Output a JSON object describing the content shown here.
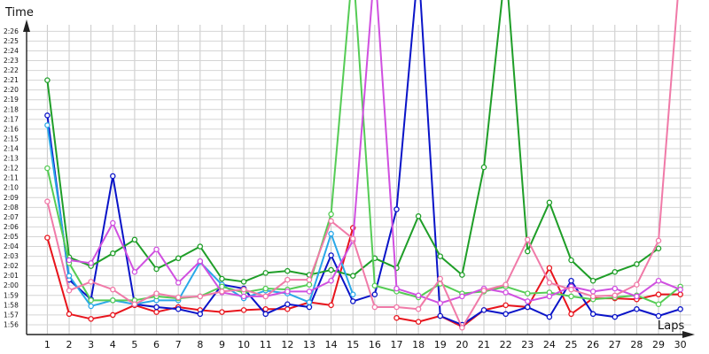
{
  "chart_data": {
    "type": "line",
    "ylabel": "Time",
    "xlabel": "Laps",
    "x": [
      1,
      2,
      3,
      4,
      5,
      6,
      7,
      8,
      9,
      10,
      11,
      12,
      13,
      14,
      15,
      16,
      17,
      18,
      19,
      20,
      21,
      22,
      23,
      24,
      25,
      26,
      27,
      28,
      29,
      30
    ],
    "x_tick_labels": [
      "1",
      "2",
      "3",
      "4",
      "5",
      "6",
      "7",
      "8",
      "9",
      "10",
      "11",
      "12",
      "13",
      "14",
      "15",
      "16",
      "17",
      "18",
      "19",
      "20",
      "21",
      "22",
      "23",
      "24",
      "25",
      "26",
      "27",
      "28",
      "29",
      "30"
    ],
    "y_tick_labels": [
      "1:56",
      "1:57",
      "1:58",
      "1:59",
      "2:00",
      "2:01",
      "2:02",
      "2:03",
      "2:04",
      "2:05",
      "2:06",
      "2:07",
      "2:08",
      "2:09",
      "2:10",
      "2:11",
      "2:12",
      "2:13",
      "2:14",
      "2:15",
      "2:16",
      "2:17",
      "2:18",
      "2:19",
      "2:20",
      "2:21",
      "2:22",
      "2:23",
      "2:24",
      "2:25",
      "2:26"
    ],
    "y_tick_values": [
      116,
      117,
      118,
      119,
      120,
      121,
      122,
      123,
      124,
      125,
      126,
      127,
      128,
      129,
      130,
      131,
      132,
      133,
      134,
      135,
      136,
      137,
      138,
      139,
      140,
      141,
      142,
      143,
      144,
      145,
      146
    ],
    "ylim": [
      115,
      149.2
    ],
    "xlim": [
      0.05,
      30.5
    ],
    "grid": true,
    "series": [
      {
        "color": "#e8141c",
        "values": [
          124.9,
          117.1,
          116.6,
          117.0,
          118.0,
          117.3,
          117.8,
          117.5,
          117.3,
          117.5,
          117.6,
          117.6,
          118.3,
          118.0,
          125.9,
          null,
          116.7,
          116.3,
          116.9,
          115.8,
          117.5,
          118.0,
          117.8,
          121.8,
          117.1,
          118.7,
          118.7,
          118.6,
          119.1,
          119.1
        ]
      },
      {
        "color": "#0a14c8",
        "values": [
          137.4,
          120.6,
          118.6,
          131.2,
          118.1,
          117.8,
          117.6,
          117.1,
          120.1,
          119.7,
          117.1,
          118.1,
          117.8,
          123.1,
          118.4,
          119.1,
          127.8,
          160.0,
          116.9,
          116.0,
          117.5,
          117.1,
          117.8,
          116.8,
          120.5,
          117.1,
          116.8,
          117.6,
          116.9,
          117.6
        ]
      },
      {
        "color": "#1f9e28",
        "values": [
          141.0,
          122.9,
          122.0,
          123.3,
          124.7,
          121.7,
          122.8,
          124.0,
          120.7,
          120.4,
          121.3,
          121.5,
          121.1,
          121.6,
          121.0,
          122.8,
          121.8,
          127.1,
          123.0,
          121.1,
          132.1,
          160.0,
          123.5,
          128.5,
          122.6,
          120.5,
          121.4,
          122.2,
          123.8,
          null
        ]
      },
      {
        "color": "#2aa8e8",
        "values": [
          136.4,
          121.0,
          117.9,
          118.5,
          118.1,
          118.5,
          118.5,
          122.4,
          120.1,
          118.7,
          119.5,
          119.2,
          118.3,
          125.3,
          119.1,
          null,
          null,
          null,
          null,
          null,
          null,
          null,
          null,
          null,
          null,
          null,
          null,
          null,
          null,
          null
        ]
      },
      {
        "color": "#55cc55",
        "values": [
          132.0,
          122.3,
          118.5,
          118.5,
          118.5,
          118.9,
          118.7,
          118.9,
          119.9,
          119.3,
          119.7,
          119.6,
          120.1,
          127.3,
          160.0,
          120.0,
          119.4,
          118.8,
          120.2,
          119.2,
          119.4,
          119.9,
          119.2,
          119.3,
          118.9,
          118.6,
          118.8,
          119.0,
          118.1,
          119.9
        ]
      },
      {
        "color": "#d050e0",
        "values": null
      },
      {
        "color": "#f07aa8",
        "values": [
          128.6,
          119.5,
          120.4,
          119.6,
          118.1,
          119.2,
          118.8,
          118.9,
          119.4,
          119.6,
          118.9,
          120.6,
          120.6,
          126.6,
          124.8,
          117.8,
          117.8,
          117.6,
          120.7,
          115.7,
          119.5,
          120.1,
          124.7,
          120.3,
          119.6,
          118.9,
          119.0,
          120.1,
          124.6,
          160.0
        ]
      }
    ]
  },
  "extra_series": {
    "magenta_values": [
      null,
      122.6,
      122.3,
      126.4,
      121.4,
      123.7,
      120.3,
      122.5,
      119.3,
      118.9,
      118.9,
      119.4,
      119.4,
      120.5,
      124.6,
      160.0,
      119.7,
      119.0,
      118.2,
      118.9,
      119.7,
      119.3,
      118.4,
      118.9,
      119.9,
      119.4,
      119.7,
      118.9,
      120.5,
      119.6
    ]
  }
}
